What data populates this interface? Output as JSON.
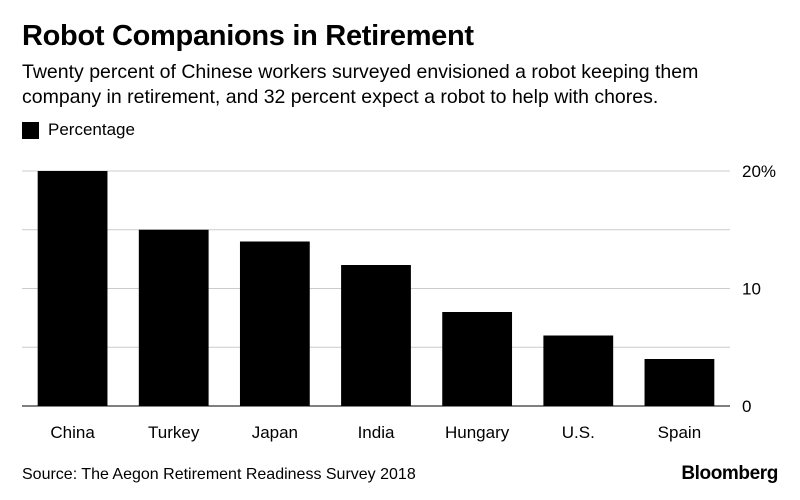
{
  "header": {
    "title": "Robot Companions in Retirement",
    "subtitle": "Twenty percent of Chinese workers surveyed envisioned a robot keeping them company in retirement, and 32 percent expect a robot to help with chores."
  },
  "legend": {
    "label": "Percentage",
    "color": "#000000"
  },
  "footer": {
    "source": "Source: The Aegon Retirement Readiness Survey 2018",
    "brand": "Bloomberg"
  },
  "chart_data": {
    "type": "bar",
    "title": "Robot Companions in Retirement",
    "xlabel": "",
    "ylabel": "",
    "categories": [
      "China",
      "Turkey",
      "Japan",
      "India",
      "Hungary",
      "U.S.",
      "Spain"
    ],
    "series": [
      {
        "name": "Percentage",
        "values": [
          20,
          15,
          14,
          12,
          8,
          6,
          4
        ],
        "color": "#000000"
      }
    ],
    "ylim": [
      0,
      20
    ],
    "y_ticks": [
      0,
      5,
      10,
      15,
      20
    ],
    "y_tick_labels": [
      "0",
      "",
      "10",
      "",
      "20%"
    ],
    "y_axis_side": "right",
    "grid": true,
    "grid_color": "#cccccc",
    "legend_position": "top-left"
  }
}
